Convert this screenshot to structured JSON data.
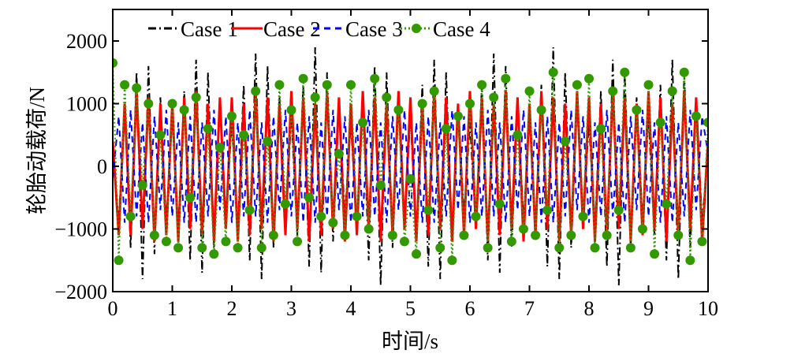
{
  "chart_data": {
    "type": "line",
    "title": "",
    "xlabel": "时间/s",
    "ylabel": "轮胎动载荷/N",
    "xlim": [
      0,
      10
    ],
    "ylim": [
      -2000,
      2500
    ],
    "xticks": [
      "0",
      "1",
      "2",
      "3",
      "4",
      "5",
      "6",
      "7",
      "8",
      "9",
      "10"
    ],
    "yticks": [
      "2000",
      "1000",
      "0",
      "−1000",
      "−2000"
    ],
    "ytick_values": [
      2000,
      1000,
      0,
      -1000,
      -2000
    ],
    "grid": false,
    "legend_position": "top",
    "x_step": 0.1,
    "series": [
      {
        "name": "Case 1",
        "color": "#000000",
        "style": "dash-dot",
        "values": [
          300,
          -900,
          1000,
          -1300,
          1500,
          -1800,
          1600,
          -1400,
          1100,
          -900,
          800,
          -1000,
          1200,
          -1500,
          1700,
          -1700,
          1500,
          -1300,
          1000,
          -800,
          700,
          -1000,
          1300,
          -1500,
          1800,
          -1800,
          1600,
          -1300,
          1100,
          -900,
          800,
          -1100,
          1300,
          -1600,
          1900,
          -1700,
          1500,
          -1200,
          1000,
          -800,
          700,
          -1000,
          1200,
          -1500,
          1600,
          -1900,
          1500,
          -1300,
          1000,
          -900,
          800,
          -1100,
          1300,
          -1600,
          1700,
          -1800,
          1500,
          -1200,
          1000,
          -800,
          700,
          -1000,
          1300,
          -1500,
          1800,
          -1700,
          1600,
          -1300,
          1100,
          -900,
          800,
          -1100,
          1300,
          -1600,
          1900,
          -1800,
          1500,
          -1300,
          1000,
          -800,
          700,
          -1000,
          1200,
          -1600,
          1700,
          -1900,
          1500,
          -1300,
          1100,
          -900,
          800,
          -1100,
          1300,
          -1500,
          1700,
          -1800,
          1500,
          -1300,
          1000,
          -900,
          300
        ]
      },
      {
        "name": "Case 2",
        "color": "#ff0000",
        "style": "solid",
        "values": [
          400,
          -1100,
          1000,
          -1100,
          1200,
          -1000,
          1100,
          -1200,
          1000,
          -1100,
          1000,
          -1200,
          1100,
          -1000,
          1200,
          -1100,
          1000,
          -1200,
          1100,
          -1000,
          1100,
          -1200,
          1000,
          -1100,
          1200,
          -1000,
          1100,
          -1200,
          1000,
          -1100,
          1200,
          -1000,
          1100,
          -1200,
          1000,
          -1100,
          1200,
          -1000,
          1100,
          -1200,
          1000,
          -1100,
          1200,
          -1000,
          1100,
          -1200,
          1000,
          -1100,
          1200,
          -1000,
          1100,
          -1200,
          1000,
          -1100,
          1200,
          -1000,
          1100,
          -1200,
          1000,
          -1100,
          1200,
          -1000,
          1100,
          -1200,
          1000,
          -1100,
          1200,
          -1000,
          1100,
          -1200,
          1000,
          -1100,
          1200,
          -1000,
          1100,
          -1200,
          1000,
          -1100,
          1200,
          -1000,
          1100,
          -1200,
          1000,
          -1100,
          1200,
          -1000,
          1100,
          -1200,
          1000,
          -1100,
          1200,
          -1000,
          1100,
          -1200,
          1000,
          -1100,
          1200,
          -1000,
          1100,
          -1200,
          400
        ]
      },
      {
        "name": "Case 3",
        "color": "#0000ff",
        "style": "dashed",
        "values": [
          -200,
          800,
          -900,
          900,
          -800,
          700,
          -900,
          800,
          -700,
          900,
          -800,
          700,
          -900,
          800,
          -900,
          700,
          -800,
          900,
          -700,
          800,
          -900,
          700,
          -800,
          900,
          -800,
          700,
          -900,
          800,
          -700,
          900,
          -800,
          700,
          -900,
          800,
          -900,
          700,
          -800,
          900,
          -700,
          800,
          -900,
          700,
          -800,
          900,
          -800,
          700,
          -900,
          800,
          -700,
          900,
          -800,
          700,
          -900,
          800,
          -900,
          700,
          -800,
          900,
          -700,
          800,
          -900,
          700,
          -800,
          900,
          -800,
          700,
          -900,
          800,
          -700,
          900,
          -800,
          700,
          -900,
          800,
          -900,
          700,
          -800,
          900,
          -700,
          800,
          -900,
          700,
          -800,
          900,
          -800,
          700,
          -900,
          800,
          -700,
          900,
          -800,
          700,
          -900,
          800,
          -900,
          700,
          -800,
          900,
          -700,
          800,
          200
        ]
      },
      {
        "name": "Case 4",
        "color": "#339900",
        "style": "dotted-circle-markers",
        "values": [
          1650,
          -1500,
          1300,
          -800,
          1250,
          -300,
          1000,
          -1100,
          500,
          -1200,
          1000,
          -1300,
          900,
          -500,
          1100,
          -1300,
          600,
          -1400,
          300,
          -1200,
          800,
          -1300,
          500,
          -700,
          1200,
          -1300,
          400,
          -1100,
          1300,
          -600,
          900,
          -1200,
          1400,
          -500,
          1100,
          -800,
          1300,
          -900,
          200,
          -1100,
          1300,
          -800,
          700,
          -1000,
          1400,
          -300,
          1100,
          -1100,
          900,
          -1200,
          -200,
          -1400,
          1000,
          -700,
          1200,
          -1300,
          600,
          -1500,
          800,
          -1100,
          1000,
          -800,
          1300,
          -1300,
          1100,
          -600,
          1400,
          -1200,
          500,
          -1000,
          1200,
          -1100,
          900,
          -700,
          1500,
          -1300,
          400,
          -1100,
          1300,
          -800,
          1400,
          -1300,
          600,
          -1100,
          1200,
          -700,
          1500,
          -1300,
          900,
          -1000,
          1300,
          -1400,
          700,
          -600,
          1200,
          -1100,
          1500,
          -1500,
          800,
          -1200,
          700
        ]
      }
    ]
  }
}
